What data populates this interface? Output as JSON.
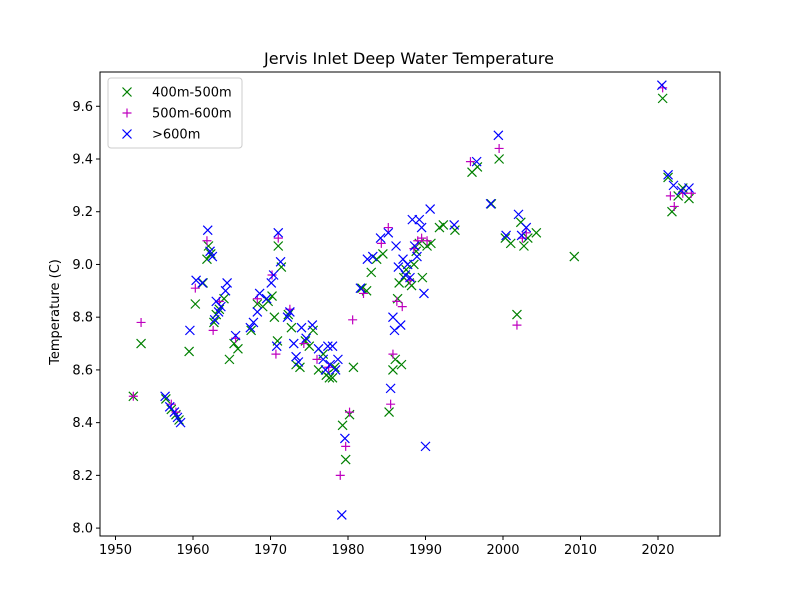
{
  "chart_data": {
    "type": "scatter",
    "title": "Jervis Inlet Deep Water Temperature",
    "xlabel": "",
    "ylabel": "Temperature (C)",
    "xlim": [
      1948,
      2028
    ],
    "ylim": [
      7.97,
      9.73
    ],
    "x_ticks": [
      1950,
      1960,
      1970,
      1980,
      1990,
      2000,
      2010,
      2020
    ],
    "y_ticks": [
      8.0,
      8.2,
      8.4,
      8.6,
      8.8,
      9.0,
      9.2,
      9.4,
      9.6
    ],
    "y_tick_labels": [
      "8.0",
      "8.2",
      "8.4",
      "8.6",
      "8.8",
      "9.0",
      "9.2",
      "9.4",
      "9.6"
    ],
    "grid": false,
    "legend_position": "top-left",
    "series": [
      {
        "name": "400m-500m",
        "marker": "x",
        "color": "#008000",
        "points": [
          [
            1952.3,
            8.5
          ],
          [
            1953.3,
            8.7
          ],
          [
            1956.5,
            8.49
          ],
          [
            1957.2,
            8.45
          ],
          [
            1957.8,
            8.43
          ],
          [
            1958.2,
            8.41
          ],
          [
            1959.5,
            8.67
          ],
          [
            1960.3,
            8.85
          ],
          [
            1961.3,
            8.93
          ],
          [
            1961.8,
            9.02
          ],
          [
            1962.0,
            9.07
          ],
          [
            1962.3,
            9.04
          ],
          [
            1962.7,
            8.78
          ],
          [
            1963.0,
            8.81
          ],
          [
            1963.4,
            8.83
          ],
          [
            1964.0,
            8.87
          ],
          [
            1964.7,
            8.64
          ],
          [
            1965.3,
            8.7
          ],
          [
            1965.8,
            8.68
          ],
          [
            1967.5,
            8.75
          ],
          [
            1968.3,
            8.85
          ],
          [
            1969.0,
            8.84
          ],
          [
            1969.7,
            8.86
          ],
          [
            1970.2,
            8.88
          ],
          [
            1970.5,
            8.8
          ],
          [
            1970.9,
            8.71
          ],
          [
            1971.0,
            9.07
          ],
          [
            1971.4,
            8.99
          ],
          [
            1972.3,
            8.81
          ],
          [
            1972.7,
            8.76
          ],
          [
            1973.3,
            8.62
          ],
          [
            1973.8,
            8.61
          ],
          [
            1974.5,
            8.71
          ],
          [
            1975.0,
            8.69
          ],
          [
            1975.5,
            8.75
          ],
          [
            1976.2,
            8.6
          ],
          [
            1976.8,
            8.66
          ],
          [
            1977.2,
            8.58
          ],
          [
            1977.6,
            8.57
          ],
          [
            1978.0,
            8.57
          ],
          [
            1978.3,
            8.61
          ],
          [
            1979.3,
            8.39
          ],
          [
            1979.7,
            8.26
          ],
          [
            1980.2,
            8.43
          ],
          [
            1980.7,
            8.61
          ],
          [
            1981.8,
            8.91
          ],
          [
            1982.4,
            8.9
          ],
          [
            1983.0,
            8.97
          ],
          [
            1983.7,
            9.02
          ],
          [
            1984.5,
            9.04
          ],
          [
            1985.3,
            8.44
          ],
          [
            1985.8,
            8.6
          ],
          [
            1986.1,
            8.64
          ],
          [
            1986.4,
            8.87
          ],
          [
            1986.6,
            8.93
          ],
          [
            1986.9,
            8.62
          ],
          [
            1987.2,
            8.95
          ],
          [
            1987.5,
            8.98
          ],
          [
            1987.9,
            8.93
          ],
          [
            1988.2,
            8.92
          ],
          [
            1988.5,
            9.0
          ],
          [
            1988.8,
            9.05
          ],
          [
            1989.2,
            9.08
          ],
          [
            1989.6,
            8.95
          ],
          [
            1990.2,
            9.07
          ],
          [
            1990.7,
            9.08
          ],
          [
            1991.8,
            9.14
          ],
          [
            1992.3,
            9.15
          ],
          [
            1993.8,
            9.13
          ],
          [
            1996.0,
            9.35
          ],
          [
            1996.7,
            9.37
          ],
          [
            1998.5,
            9.23
          ],
          [
            1999.5,
            9.4
          ],
          [
            2000.3,
            9.1
          ],
          [
            2001.0,
            9.08
          ],
          [
            2001.8,
            8.81
          ],
          [
            2002.3,
            9.16
          ],
          [
            2002.7,
            9.07
          ],
          [
            2003.2,
            9.1
          ],
          [
            2004.3,
            9.12
          ],
          [
            2009.2,
            9.03
          ],
          [
            2020.6,
            9.63
          ],
          [
            2021.3,
            9.33
          ],
          [
            2021.8,
            9.2
          ],
          [
            2022.6,
            9.26
          ],
          [
            2023.2,
            9.29
          ],
          [
            2024.0,
            9.25
          ]
        ]
      },
      {
        "name": "500m-600m",
        "marker": "+",
        "color": "#bf00bf",
        "points": [
          [
            1952.3,
            8.5
          ],
          [
            1953.3,
            8.78
          ],
          [
            1957.2,
            8.47
          ],
          [
            1957.8,
            8.44
          ],
          [
            1960.3,
            8.91
          ],
          [
            1961.8,
            9.09
          ],
          [
            1962.6,
            8.75
          ],
          [
            1963.4,
            8.86
          ],
          [
            1965.5,
            8.72
          ],
          [
            1968.3,
            8.87
          ],
          [
            1970.2,
            8.96
          ],
          [
            1970.7,
            8.66
          ],
          [
            1971.0,
            9.1
          ],
          [
            1972.5,
            8.83
          ],
          [
            1974.3,
            8.7
          ],
          [
            1976.0,
            8.64
          ],
          [
            1977.5,
            8.61
          ],
          [
            1979.0,
            8.2
          ],
          [
            1979.7,
            8.31
          ],
          [
            1980.2,
            8.44
          ],
          [
            1980.6,
            8.79
          ],
          [
            1982.0,
            8.89
          ],
          [
            1984.3,
            9.08
          ],
          [
            1985.2,
            9.14
          ],
          [
            1985.5,
            8.47
          ],
          [
            1985.8,
            8.66
          ],
          [
            1986.3,
            8.86
          ],
          [
            1987.0,
            8.84
          ],
          [
            1988.0,
            8.94
          ],
          [
            1988.5,
            9.06
          ],
          [
            1989.0,
            9.09
          ],
          [
            1989.5,
            9.1
          ],
          [
            1990.2,
            9.09
          ],
          [
            1995.8,
            9.39
          ],
          [
            1999.5,
            9.44
          ],
          [
            2001.8,
            8.77
          ],
          [
            2002.5,
            9.1
          ],
          [
            2003.0,
            9.12
          ],
          [
            2020.6,
            9.67
          ],
          [
            2021.6,
            9.26
          ],
          [
            2022.1,
            9.22
          ],
          [
            2023.2,
            9.27
          ],
          [
            2024.3,
            9.27
          ]
        ]
      },
      {
        "name": ">600m",
        "marker": "x",
        "color": "#0000ff",
        "points": [
          [
            1956.4,
            8.5
          ],
          [
            1957.0,
            8.46
          ],
          [
            1957.6,
            8.44
          ],
          [
            1958.0,
            8.42
          ],
          [
            1958.4,
            8.4
          ],
          [
            1959.6,
            8.75
          ],
          [
            1960.4,
            8.94
          ],
          [
            1961.2,
            8.93
          ],
          [
            1961.9,
            9.13
          ],
          [
            1962.2,
            9.05
          ],
          [
            1962.5,
            9.03
          ],
          [
            1962.8,
            8.79
          ],
          [
            1963.0,
            8.86
          ],
          [
            1963.3,
            8.82
          ],
          [
            1963.6,
            8.84
          ],
          [
            1964.2,
            8.9
          ],
          [
            1964.4,
            8.93
          ],
          [
            1965.5,
            8.73
          ],
          [
            1967.4,
            8.76
          ],
          [
            1967.8,
            8.78
          ],
          [
            1968.3,
            8.82
          ],
          [
            1968.6,
            8.89
          ],
          [
            1969.5,
            8.87
          ],
          [
            1970.1,
            8.93
          ],
          [
            1970.4,
            8.96
          ],
          [
            1970.8,
            8.69
          ],
          [
            1971.0,
            9.12
          ],
          [
            1971.3,
            9.01
          ],
          [
            1972.2,
            8.8
          ],
          [
            1972.5,
            8.82
          ],
          [
            1973.0,
            8.7
          ],
          [
            1973.3,
            8.65
          ],
          [
            1973.6,
            8.63
          ],
          [
            1974.0,
            8.76
          ],
          [
            1974.6,
            8.72
          ],
          [
            1975.4,
            8.77
          ],
          [
            1976.2,
            8.68
          ],
          [
            1976.8,
            8.64
          ],
          [
            1977.1,
            8.6
          ],
          [
            1977.4,
            8.69
          ],
          [
            1977.7,
            8.62
          ],
          [
            1978.0,
            8.69
          ],
          [
            1978.4,
            8.6
          ],
          [
            1978.7,
            8.64
          ],
          [
            1979.2,
            8.05
          ],
          [
            1979.6,
            8.34
          ],
          [
            1981.6,
            8.91
          ],
          [
            1982.5,
            9.02
          ],
          [
            1983.2,
            9.03
          ],
          [
            1984.2,
            9.1
          ],
          [
            1985.2,
            9.12
          ],
          [
            1985.5,
            8.53
          ],
          [
            1985.8,
            8.8
          ],
          [
            1986.0,
            8.75
          ],
          [
            1986.2,
            9.07
          ],
          [
            1986.5,
            8.99
          ],
          [
            1986.8,
            8.77
          ],
          [
            1987.1,
            9.02
          ],
          [
            1987.4,
            8.96
          ],
          [
            1987.7,
            9.0
          ],
          [
            1988.0,
            8.95
          ],
          [
            1988.3,
            9.17
          ],
          [
            1988.6,
            9.07
          ],
          [
            1988.9,
            9.03
          ],
          [
            1989.2,
            9.17
          ],
          [
            1989.5,
            9.14
          ],
          [
            1989.8,
            8.89
          ],
          [
            1990.0,
            8.31
          ],
          [
            1990.6,
            9.21
          ],
          [
            1993.7,
            9.15
          ],
          [
            1996.6,
            9.39
          ],
          [
            1998.4,
            9.23
          ],
          [
            1999.4,
            9.49
          ],
          [
            2000.4,
            9.11
          ],
          [
            2002.0,
            9.19
          ],
          [
            2002.4,
            9.11
          ],
          [
            2003.0,
            9.14
          ],
          [
            2020.5,
            9.68
          ],
          [
            2021.3,
            9.34
          ],
          [
            2022.0,
            9.3
          ],
          [
            2023.0,
            9.28
          ],
          [
            2024.0,
            9.29
          ]
        ]
      }
    ]
  }
}
